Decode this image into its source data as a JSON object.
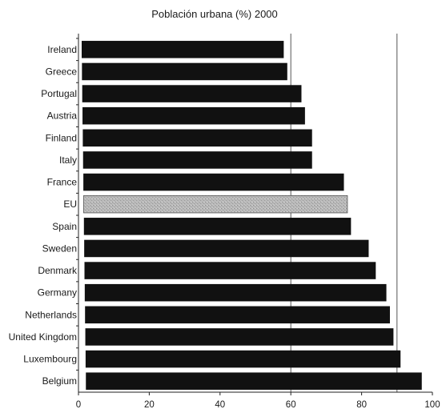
{
  "chart_data": {
    "type": "bar",
    "orientation": "horizontal",
    "title": "Población urbana (%) 2000",
    "xlabel": "",
    "ylabel": "",
    "xlim": [
      0,
      100
    ],
    "x_ticks": [
      0,
      20,
      40,
      60,
      80,
      100
    ],
    "grid": "vertical at 60 and 90",
    "legend": "none",
    "categories": [
      "Ireland",
      "Greece",
      "Portugal",
      "Austria",
      "Finland",
      "Italy",
      "France",
      "EU",
      "Spain",
      "Sweden",
      "Denmark",
      "Germany",
      "Netherlands",
      "United Kingdom",
      "Luxembourg",
      "Belgium"
    ],
    "values": [
      58,
      59,
      63,
      64,
      66,
      66,
      75,
      76,
      77,
      82,
      84,
      87,
      88,
      89,
      91,
      97
    ],
    "highlight_category": "EU",
    "colors": {
      "bar": "#111111",
      "highlight_bar": "#b8b8b8",
      "axis": "#222222",
      "grid": "#555555"
    }
  }
}
